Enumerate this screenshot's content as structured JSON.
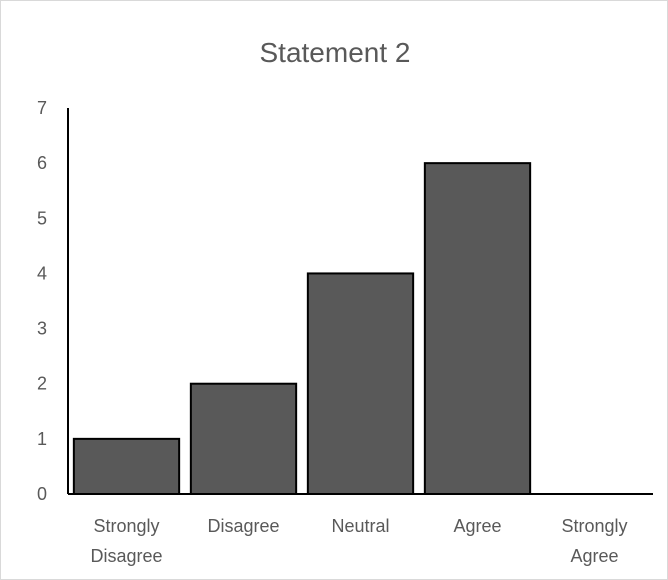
{
  "chart_data": {
    "type": "bar",
    "title": "Statement 2",
    "xlabel": "",
    "ylabel": "",
    "categories": [
      "Strongly Disagree",
      "Disagree",
      "Neutral",
      "Agree",
      "Strongly Agree"
    ],
    "category_lines": [
      [
        "Strongly",
        "Disagree"
      ],
      [
        "Disagree"
      ],
      [
        "Neutral"
      ],
      [
        "Agree"
      ],
      [
        "Strongly",
        "Agree"
      ]
    ],
    "values": [
      1,
      2,
      4,
      6,
      0
    ],
    "ylim": [
      0,
      7
    ],
    "yticks": [
      "0",
      "1",
      "2",
      "3",
      "4",
      "5",
      "6",
      "7"
    ],
    "grid": false,
    "legend": "none",
    "colors": {
      "bar_fill": "#595959",
      "bar_stroke": "#000000",
      "axis": "#000000",
      "text": "#595959"
    }
  }
}
